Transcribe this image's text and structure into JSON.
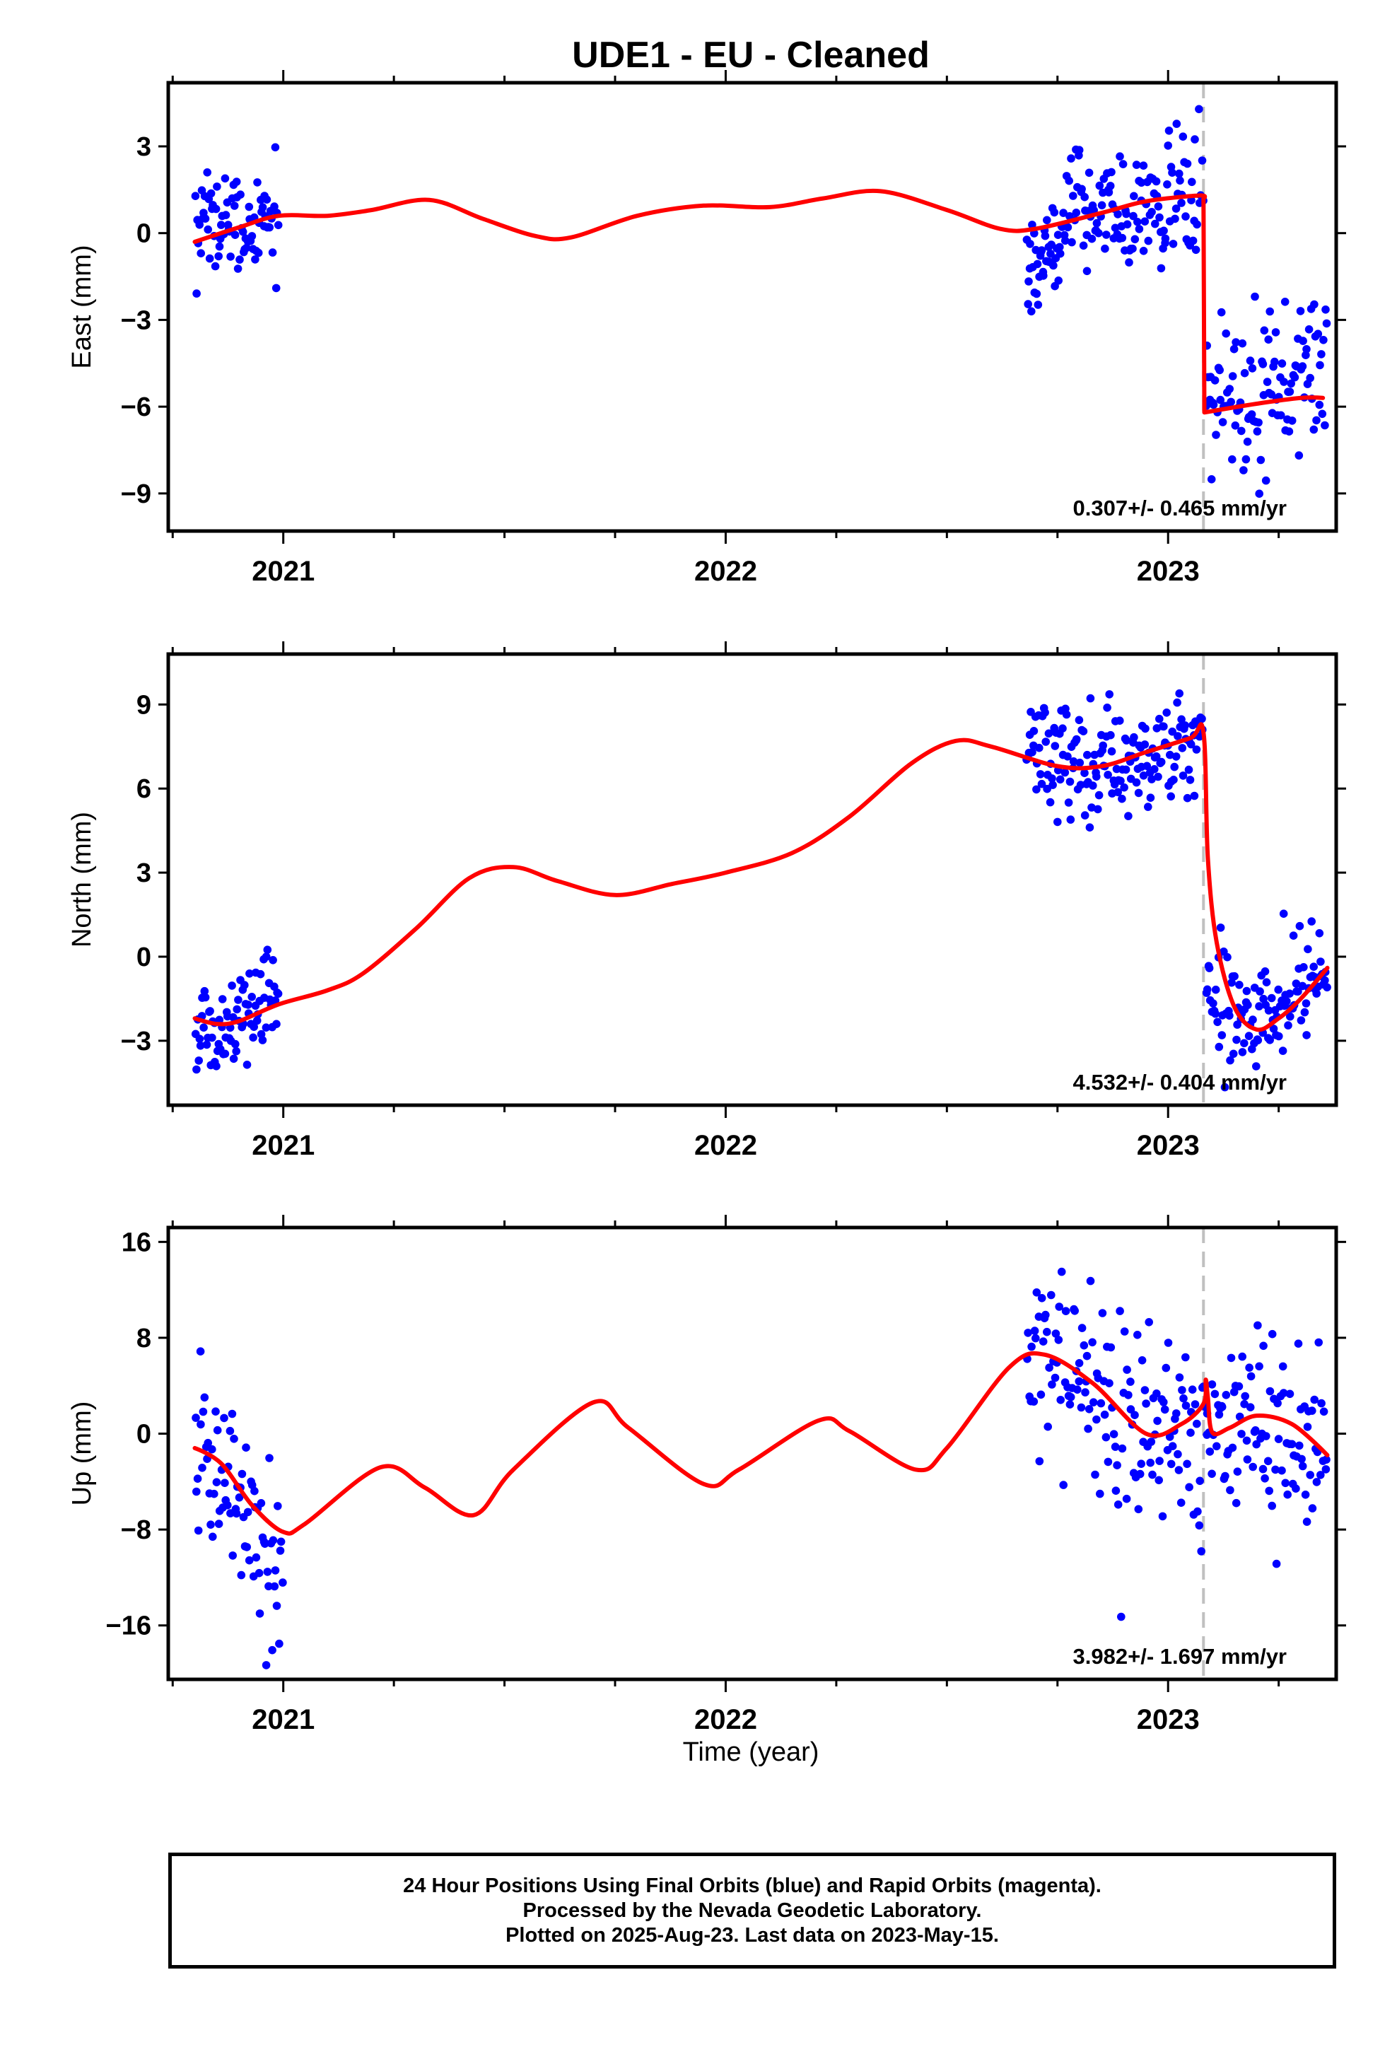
{
  "title": "UDE1  - EU - Cleaned",
  "xlabel": "Time (year)",
  "footer": {
    "line1": "24 Hour Positions Using Final Orbits (blue) and Rapid Orbits (magenta).",
    "line2": "Processed by the Nevada Geodetic Laboratory.",
    "line3": "Plotted on 2025-Aug-23. Last data on 2023-May-15."
  },
  "colors": {
    "data": "#0000ff",
    "model": "#ff0000",
    "offset_line": "#c0c0c0",
    "frame": "#000000"
  },
  "chart_data": [
    {
      "type": "scatter",
      "ylabel": "East (mm)",
      "xlim": [
        2020.74,
        2023.38
      ],
      "ylim": [
        -10.3,
        5.2
      ],
      "yticks": [
        3,
        0,
        -3,
        -6,
        -9
      ],
      "xticks": [
        2021,
        2022,
        2023
      ],
      "offset_epoch": 2023.08,
      "rate_label": "0.307+/- 0.465 mm/yr",
      "series": [
        {
          "type": "scatter",
          "segments": [
            {
              "x0": 2020.8,
              "x1": 2020.99,
              "n": 80,
              "curve": [
                [
                  2020.8,
                  0.8
                ],
                [
                  2020.9,
                  0.0
                ],
                [
                  2020.99,
                  0.6
                ]
              ],
              "sigma": 0.95
            },
            {
              "x0": 2022.68,
              "x1": 2022.76,
              "n": 40,
              "curve": [
                [
                  2022.68,
                  -1.0
                ],
                [
                  2022.76,
                  -0.8
                ]
              ],
              "sigma": 0.8
            },
            {
              "x0": 2022.76,
              "x1": 2023.08,
              "n": 130,
              "curve": [
                [
                  2022.76,
                  0.8
                ],
                [
                  2022.9,
                  0.9
                ],
                [
                  2023.08,
                  1.4
                ]
              ],
              "sigma": 0.95
            },
            {
              "x0": 2023.085,
              "x1": 2023.36,
              "n": 110,
              "curve": [
                [
                  2023.085,
                  -5.8
                ],
                [
                  2023.2,
                  -5.9
                ],
                [
                  2023.36,
                  -5.0
                ]
              ],
              "sigma": 1.2
            }
          ]
        },
        {
          "type": "line",
          "points": [
            [
              2020.8,
              -0.3
            ],
            [
              2020.9,
              0.2
            ],
            [
              2020.99,
              0.6
            ],
            [
              2021.1,
              0.6
            ],
            [
              2021.2,
              0.8
            ],
            [
              2021.33,
              1.15
            ],
            [
              2021.45,
              0.5
            ],
            [
              2021.57,
              -0.1
            ],
            [
              2021.65,
              -0.15
            ],
            [
              2021.8,
              0.6
            ],
            [
              2021.95,
              0.95
            ],
            [
              2022.1,
              0.9
            ],
            [
              2022.22,
              1.2
            ],
            [
              2022.35,
              1.45
            ],
            [
              2022.5,
              0.8
            ],
            [
              2022.62,
              0.15
            ],
            [
              2022.7,
              0.15
            ],
            [
              2022.85,
              0.7
            ],
            [
              2022.95,
              1.1
            ],
            [
              2023.07,
              1.3
            ],
            [
              2023.08,
              1.2
            ],
            [
              2023.082,
              -6.2
            ],
            [
              2023.2,
              -5.9
            ],
            [
              2023.3,
              -5.7
            ],
            [
              2023.35,
              -5.7
            ]
          ]
        }
      ]
    },
    {
      "type": "scatter",
      "ylabel": "North (mm)",
      "xlim": [
        2020.74,
        2023.38
      ],
      "ylim": [
        -5.3,
        10.8
      ],
      "yticks": [
        9,
        6,
        3,
        0,
        -3
      ],
      "xticks": [
        2021,
        2022,
        2023
      ],
      "offset_epoch": 2023.08,
      "rate_label": "4.532+/- 0.404 mm/yr",
      "series": [
        {
          "type": "scatter",
          "segments": [
            {
              "x0": 2020.8,
              "x1": 2020.99,
              "n": 80,
              "curve": [
                [
                  2020.8,
                  -3.1
                ],
                [
                  2020.88,
                  -2.4
                ],
                [
                  2020.99,
                  -1.2
                ]
              ],
              "sigma": 0.85
            },
            {
              "x0": 2022.68,
              "x1": 2023.08,
              "n": 170,
              "curve": [
                [
                  2022.68,
                  7.4
                ],
                [
                  2022.8,
                  7.0
                ],
                [
                  2022.9,
                  6.8
                ],
                [
                  2023.08,
                  7.8
                ]
              ],
              "sigma": 1.0
            },
            {
              "x0": 2023.085,
              "x1": 2023.36,
              "n": 110,
              "curve": [
                [
                  2023.085,
                  -1.0
                ],
                [
                  2023.15,
                  -2.0
                ],
                [
                  2023.22,
                  -2.2
                ],
                [
                  2023.36,
                  -0.2
                ]
              ],
              "sigma": 1.05
            }
          ]
        },
        {
          "type": "line",
          "points": [
            [
              2020.8,
              -2.2
            ],
            [
              2020.85,
              -2.4
            ],
            [
              2020.9,
              -2.3
            ],
            [
              2020.99,
              -1.7
            ],
            [
              2021.1,
              -1.2
            ],
            [
              2021.18,
              -0.6
            ],
            [
              2021.3,
              1.0
            ],
            [
              2021.42,
              2.8
            ],
            [
              2021.52,
              3.2
            ],
            [
              2021.62,
              2.7
            ],
            [
              2021.75,
              2.2
            ],
            [
              2021.88,
              2.6
            ],
            [
              2022.0,
              3.0
            ],
            [
              2022.15,
              3.7
            ],
            [
              2022.28,
              5.0
            ],
            [
              2022.42,
              6.9
            ],
            [
              2022.52,
              7.7
            ],
            [
              2022.6,
              7.5
            ],
            [
              2022.75,
              6.8
            ],
            [
              2022.85,
              6.8
            ],
            [
              2022.95,
              7.3
            ],
            [
              2023.05,
              7.8
            ],
            [
              2023.08,
              8.0
            ],
            [
              2023.09,
              3.5
            ],
            [
              2023.11,
              0.5
            ],
            [
              2023.15,
              -1.8
            ],
            [
              2023.2,
              -2.6
            ],
            [
              2023.25,
              -2.2
            ],
            [
              2023.3,
              -1.5
            ],
            [
              2023.36,
              -0.4
            ]
          ]
        }
      ]
    },
    {
      "type": "scatter",
      "ylabel": "Up (mm)",
      "xlim": [
        2020.74,
        2023.38
      ],
      "ylim": [
        -20.5,
        17.2
      ],
      "yticks": [
        16,
        8,
        0,
        -8,
        -16
      ],
      "xticks": [
        2021,
        2022,
        2023
      ],
      "offset_epoch": 2023.08,
      "rate_label": "3.982+/- 1.697 mm/yr",
      "series": [
        {
          "type": "scatter",
          "segments": [
            {
              "x0": 2020.8,
              "x1": 2021.0,
              "n": 75,
              "curve": [
                [
                  2020.8,
                  0.0
                ],
                [
                  2020.9,
                  -6.0
                ],
                [
                  2021.0,
                  -11.0
                ]
              ],
              "sigma": 3.6
            },
            {
              "x0": 2022.68,
              "x1": 2023.36,
              "n": 240,
              "curve": [
                [
                  2022.68,
                  8.0
                ],
                [
                  2022.75,
                  7.0
                ],
                [
                  2022.85,
                  3.0
                ],
                [
                  2022.95,
                  0.0
                ],
                [
                  2023.05,
                  -1.0
                ],
                [
                  2023.2,
                  2.0
                ],
                [
                  2023.36,
                  -2.0
                ]
              ],
              "sigma": 4.2
            }
          ]
        },
        {
          "type": "line",
          "points": [
            [
              2020.8,
              -1.2
            ],
            [
              2020.86,
              -2.5
            ],
            [
              2020.93,
              -6.0
            ],
            [
              2021.0,
              -8.2
            ],
            [
              2021.05,
              -7.5
            ],
            [
              2021.22,
              -2.8
            ],
            [
              2021.32,
              -4.5
            ],
            [
              2021.43,
              -6.8
            ],
            [
              2021.52,
              -3.0
            ],
            [
              2021.7,
              2.6
            ],
            [
              2021.78,
              0.5
            ],
            [
              2021.95,
              -4.2
            ],
            [
              2022.03,
              -3.0
            ],
            [
              2022.21,
              1.1
            ],
            [
              2022.28,
              0.2
            ],
            [
              2022.43,
              -3.0
            ],
            [
              2022.5,
              -1.2
            ],
            [
              2022.64,
              5.5
            ],
            [
              2022.72,
              6.6
            ],
            [
              2022.83,
              4.2
            ],
            [
              2022.95,
              0.0
            ],
            [
              2023.03,
              0.8
            ],
            [
              2023.08,
              2.5
            ],
            [
              2023.085,
              4.5
            ],
            [
              2023.09,
              3.0
            ],
            [
              2023.1,
              0.1
            ],
            [
              2023.14,
              0.5
            ],
            [
              2023.2,
              1.5
            ],
            [
              2023.28,
              0.8
            ],
            [
              2023.36,
              -1.8
            ]
          ]
        }
      ]
    }
  ]
}
